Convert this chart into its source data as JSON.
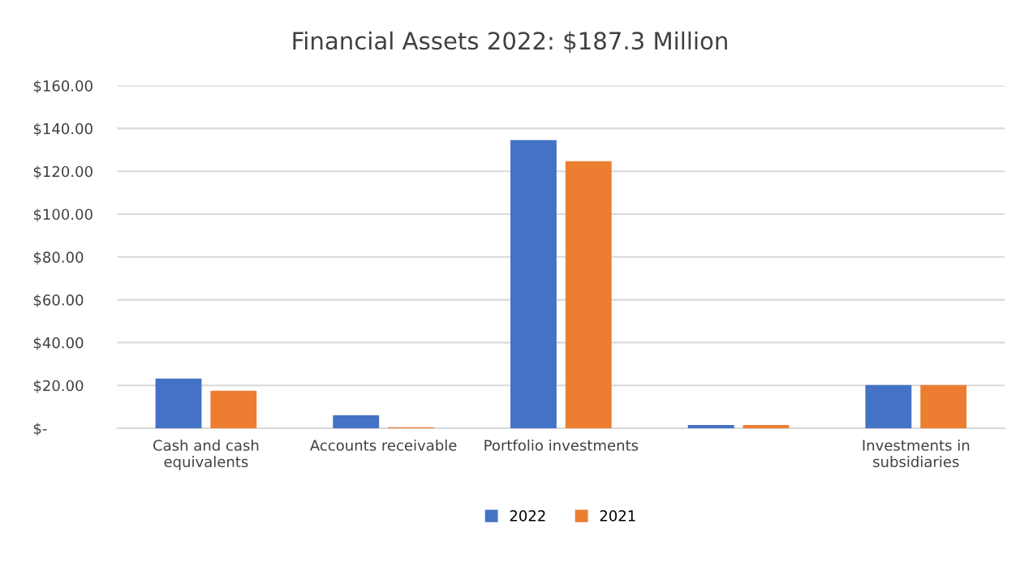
{
  "chart_data": {
    "type": "bar",
    "title": "Financial Assets 2022: $187.3 Million",
    "categories": [
      "Cash and cash\nequivalents",
      "Accounts receivable",
      "Portfolio investments",
      null,
      "Investments in\nsubsidiaries"
    ],
    "series": [
      {
        "name": "2022",
        "color": "#4472c4",
        "values": [
          23.2,
          6.1,
          134.6,
          1.5,
          20.2
        ]
      },
      {
        "name": "2021",
        "color": "#ed7d31",
        "values": [
          17.5,
          0.5,
          124.7,
          1.5,
          20.2
        ]
      }
    ],
    "ylim": [
      0,
      160
    ],
    "yticks": [
      {
        "value": 0,
        "label": "$-"
      },
      {
        "value": 20,
        "label": "$20.00"
      },
      {
        "value": 40,
        "label": "$40.00"
      },
      {
        "value": 60,
        "label": "$60.00"
      },
      {
        "value": 80,
        "label": "$80.00"
      },
      {
        "value": 100,
        "label": "$100.00"
      },
      {
        "value": 120,
        "label": "$120.00"
      },
      {
        "value": 140,
        "label": "$140.00"
      },
      {
        "value": 160,
        "label": "$160.00"
      }
    ],
    "grid": "y",
    "legend": "bottom"
  }
}
